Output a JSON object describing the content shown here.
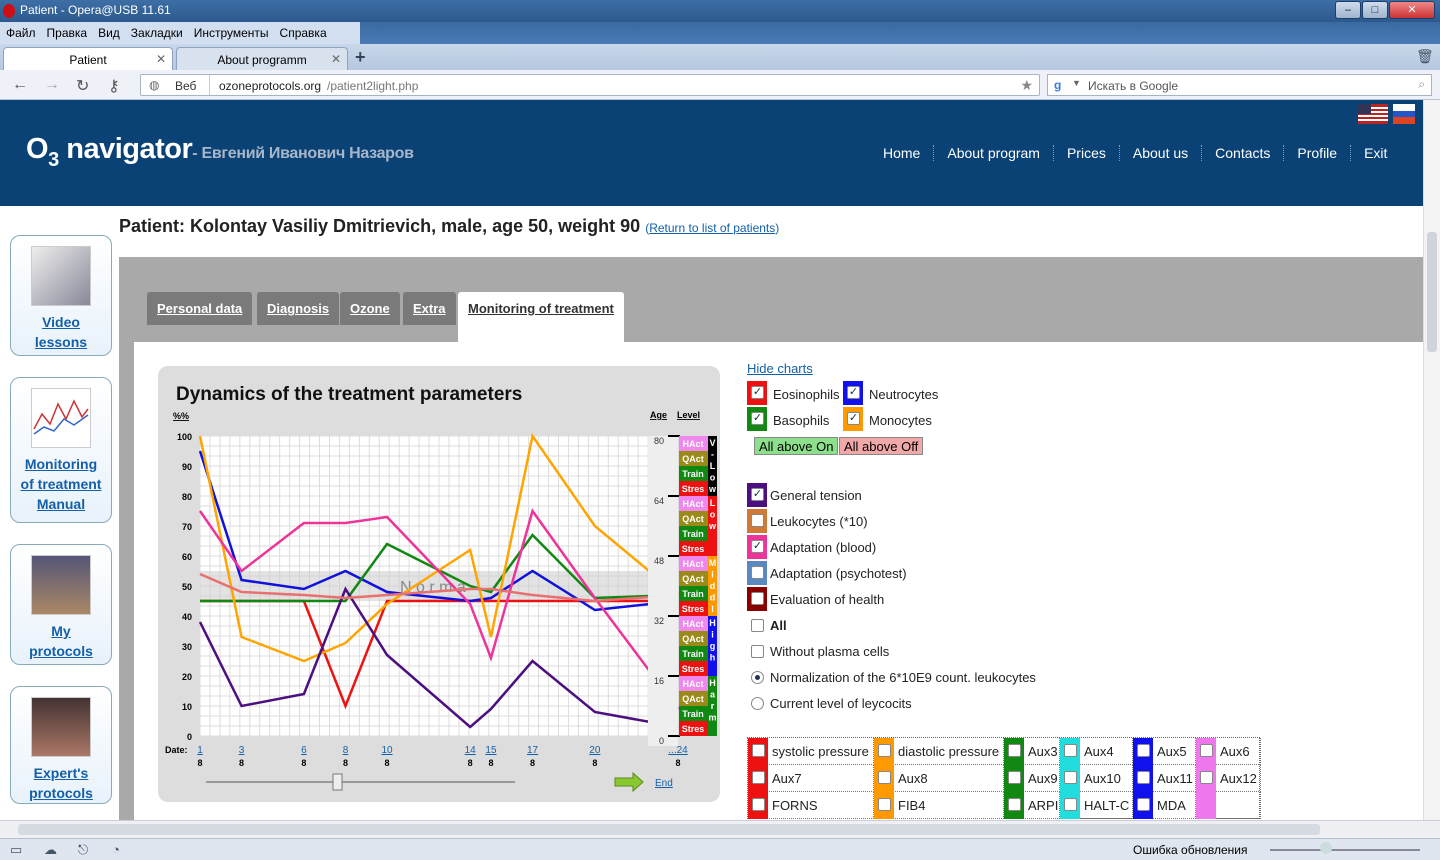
{
  "window": {
    "title": "Patient - Opera@USB 11.61"
  },
  "menu": [
    "Файл",
    "Правка",
    "Вид",
    "Закладки",
    "Инструменты",
    "Справка"
  ],
  "tabs": [
    {
      "label": "Patient"
    },
    {
      "label": "About programm"
    }
  ],
  "address": {
    "prefix": "Веб",
    "url_host": "ozoneprotocols.org",
    "url_path": "/patient2light.php",
    "search_placeholder": "Искать в Google"
  },
  "site": {
    "logo_main": "O",
    "logo_sub3": "3",
    "logo_word": "navigator",
    "logo_author": "- Евгений Иванович Назаров"
  },
  "topnav": [
    "Home",
    "About program",
    "Prices",
    "About us",
    "Contacts",
    "Profile",
    "Exit"
  ],
  "sidebar": [
    {
      "label1": "Video",
      "label2": "lessons"
    },
    {
      "label1": "Monitoring",
      "label2": "of treatment",
      "label3": "Manual"
    },
    {
      "label1": "My",
      "label2": "protocols"
    },
    {
      "label1": "Expert's",
      "label2": "protocols"
    }
  ],
  "patient": {
    "title": "Patient: Kolontay Vasiliy Dmitrievich, male, age 50, weight 90",
    "return_prefix": "(",
    "return_link": "Return to list of patients",
    "return_suffix": ")"
  },
  "panel_tabs": [
    "Personal data",
    "Diagnosis",
    "Ozone",
    "Extra",
    "Monitoring of treatment"
  ],
  "controls": {
    "hide_charts": "Hide charts",
    "cells": [
      {
        "label": "Eosinophils",
        "checked": true,
        "color": "#ee1111"
      },
      {
        "label": "Neutrocytes",
        "checked": true,
        "color": "#1111ee"
      },
      {
        "label": "Basophils",
        "checked": true,
        "color": "#118811"
      },
      {
        "label": "Monocytes",
        "checked": true,
        "color": "#ff9900"
      }
    ],
    "all_on": "All above On",
    "all_off": "All above Off",
    "params": [
      {
        "label": "General tension",
        "checked": true,
        "color": "#4b0f7f"
      },
      {
        "label": "Leukocytes (*10)",
        "checked": false,
        "color": "#d07a36"
      },
      {
        "label": "Adaptation (blood)",
        "checked": true,
        "color": "#ee3399"
      },
      {
        "label": "Adaptation (psychotest)",
        "checked": false,
        "color": "#5a88c0"
      },
      {
        "label": "Evaluation of health",
        "checked": false,
        "color": "#880000"
      }
    ],
    "all": "All",
    "without_plasma": "Without plasma cells",
    "radio1": "Normalization of the 6*10E9 count. leukocytes",
    "radio2": "Current level of leycocits"
  },
  "aux": [
    [
      {
        "label": "systolic pressure",
        "color": "#ee1111"
      },
      {
        "label": "diastolic pressure",
        "color": "#ff9900"
      },
      {
        "label": "Aux3",
        "color": "#118811"
      },
      {
        "label": "Aux4",
        "color": "#22dddd"
      },
      {
        "label": "Aux5",
        "color": "#1111ee"
      },
      {
        "label": "Aux6",
        "color": "#ee77ee"
      }
    ],
    [
      {
        "label": "Aux7",
        "color": "#ee1111"
      },
      {
        "label": "Aux8",
        "color": "#ff9900"
      },
      {
        "label": "Aux9",
        "color": "#118811"
      },
      {
        "label": "Aux10",
        "color": "#22dddd"
      },
      {
        "label": "Aux11",
        "color": "#1111ee"
      },
      {
        "label": "Aux12",
        "color": "#ee77ee"
      }
    ],
    [
      {
        "label": "FORNS",
        "color": "#ee1111"
      },
      {
        "label": "FIB4",
        "color": "#ff9900"
      },
      {
        "label": "ARPI",
        "color": "#118811"
      },
      {
        "label": "HALT-C",
        "color": "#22dddd"
      },
      {
        "label": "MDA",
        "color": "#1111ee"
      },
      {
        "label": "",
        "color": "#ee77ee"
      }
    ]
  ],
  "status": {
    "update": "Ошибка обновления"
  },
  "chart_data": {
    "type": "line",
    "title": "Dynamics of the treatment parameters",
    "ylabel": "%%",
    "ylim": [
      0,
      100
    ],
    "yticks": [
      0,
      10,
      20,
      30,
      40,
      50,
      60,
      70,
      80,
      90,
      100
    ],
    "norma_label": "N o r m a",
    "norma_range": [
      45,
      55
    ],
    "date_label": "Date:",
    "x": [
      1,
      3,
      6,
      8,
      10,
      14,
      15,
      17,
      20,
      24
    ],
    "x_labels_top": [
      "1",
      "3",
      "6",
      "8",
      "10",
      "14",
      "15",
      "17",
      "20",
      "...24"
    ],
    "x_labels_bottom": [
      "8",
      "8",
      "8",
      "8",
      "8",
      "8",
      "8",
      "8",
      "8",
      "8"
    ],
    "series": [
      {
        "name": "Eosinophils",
        "color": "#ee1111",
        "values": [
          45,
          45,
          45,
          10,
          45,
          45,
          45,
          45,
          45,
          45
        ]
      },
      {
        "name": "Neutrocytes",
        "color": "#1111dd",
        "values": [
          95,
          52,
          49,
          55,
          48,
          45,
          46,
          55,
          42,
          45
        ]
      },
      {
        "name": "Basophils",
        "color": "#118811",
        "values": [
          45,
          45,
          45,
          45,
          64,
          50,
          48,
          67,
          46,
          47
        ]
      },
      {
        "name": "Monocytes",
        "color": "#ffa500",
        "values": [
          100,
          33,
          25,
          31,
          44,
          62,
          33,
          100,
          70,
          47
        ]
      },
      {
        "name": "General tension",
        "color": "#4b0f7f",
        "values": [
          38,
          10,
          14,
          49,
          27,
          3,
          9,
          25,
          8,
          3
        ]
      },
      {
        "name": "Adaptation (blood)",
        "color": "#ee3399",
        "values": [
          75,
          55,
          71,
          71,
          73,
          44,
          26,
          75,
          46,
          9
        ]
      },
      {
        "name": "",
        "color": "#e87070",
        "values": [
          54,
          48,
          47,
          46,
          47,
          49,
          49,
          47,
          45,
          47
        ]
      }
    ],
    "age_label": "Age",
    "level_label": "Level",
    "age_ticks": [
      "80",
      "64",
      "48",
      "32",
      "16",
      "0"
    ],
    "level_blocks": [
      "HAct",
      "QAct",
      "Train",
      "Stres"
    ],
    "level_bands": [
      {
        "letters": [
          "V",
          "-",
          "L",
          "o",
          "w"
        ],
        "color": "#000000"
      },
      {
        "letters": [
          "L",
          "o",
          "w"
        ],
        "color": "#ee1111"
      },
      {
        "letters": [
          "M",
          "i",
          "d",
          "d",
          "l"
        ],
        "color": "#ff9900"
      },
      {
        "letters": [
          "H",
          "i",
          "g",
          "h"
        ],
        "color": "#1111ee"
      },
      {
        "letters": [
          "H",
          "a",
          "r",
          "m"
        ],
        "color": "#118811"
      }
    ],
    "end_label": "End"
  }
}
